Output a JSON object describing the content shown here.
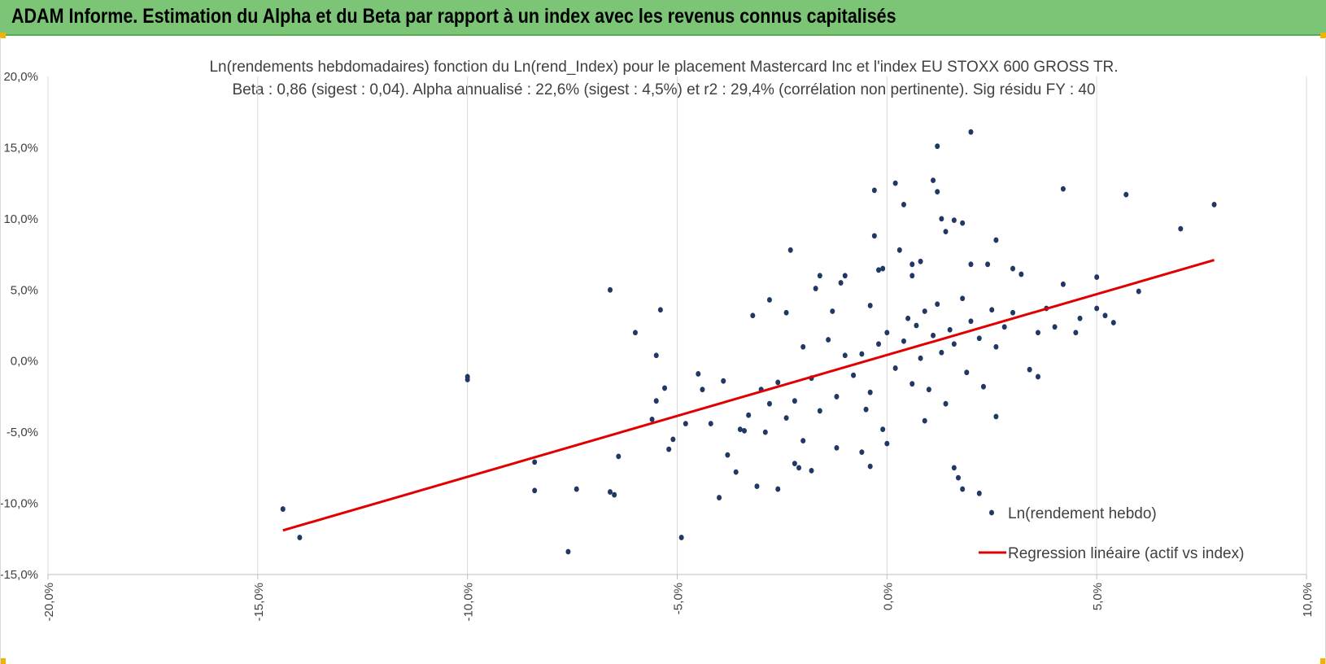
{
  "header": {
    "title": "ADAM Informe. Estimation du Alpha et du Beta par rapport à un index avec les revenus connus capitalisés",
    "background": "#7cc576"
  },
  "chart_data": {
    "type": "scatter",
    "title": "Ln(rendements hebdomadaires) fonction du Ln(rend_Index) pour le placement Mastercard Inc et l'index EU STOXX 600 GROSS TR.",
    "subtitle": "Beta : 0,86 (sigest : 0,04). Alpha annualisé : 22,6% (sigest : 4,5%) et r2 : 29,4% (corrélation non pertinente). Sig résidu FY : 40",
    "xlabel": "",
    "ylabel": "",
    "xlim": [
      -0.2,
      0.1
    ],
    "ylim": [
      -0.15,
      0.2
    ],
    "x_ticks": [
      "-20,0%",
      "-15,0%",
      "-10,0%",
      "-5,0%",
      "0,0%",
      "5,0%",
      "10,0%"
    ],
    "y_ticks": [
      "20,0%",
      "15,0%",
      "10,0%",
      "5,0%",
      "0,0%",
      "-5,0%",
      "-10,0%",
      "-15,0%"
    ],
    "grid": {
      "vertical": true,
      "horizontal": false
    },
    "legend_position": "bottom-right",
    "series": [
      {
        "name": "Ln(rendement hebdo)",
        "kind": "scatter",
        "color": "#1f3864",
        "points": [
          [
            -0.144,
            -0.104
          ],
          [
            -0.14,
            -0.124
          ],
          [
            -0.1,
            -0.013
          ],
          [
            -0.1,
            -0.011
          ],
          [
            -0.084,
            -0.071
          ],
          [
            -0.084,
            -0.091
          ],
          [
            -0.076,
            -0.134
          ],
          [
            -0.074,
            -0.09
          ],
          [
            -0.066,
            0.05
          ],
          [
            -0.066,
            -0.092
          ],
          [
            -0.065,
            -0.094
          ],
          [
            -0.064,
            -0.067
          ],
          [
            -0.06,
            0.02
          ],
          [
            -0.056,
            -0.041
          ],
          [
            -0.055,
            0.004
          ],
          [
            -0.055,
            -0.028
          ],
          [
            -0.054,
            0.036
          ],
          [
            -0.053,
            -0.019
          ],
          [
            -0.052,
            -0.062
          ],
          [
            -0.051,
            -0.055
          ],
          [
            -0.049,
            -0.124
          ],
          [
            -0.048,
            -0.044
          ],
          [
            -0.045,
            -0.009
          ],
          [
            -0.044,
            -0.02
          ],
          [
            -0.042,
            -0.044
          ],
          [
            -0.04,
            -0.096
          ],
          [
            -0.039,
            -0.014
          ],
          [
            -0.038,
            -0.066
          ],
          [
            -0.036,
            -0.078
          ],
          [
            -0.034,
            -0.049
          ],
          [
            -0.032,
            0.032
          ],
          [
            -0.031,
            -0.088
          ],
          [
            -0.029,
            -0.05
          ],
          [
            -0.028,
            0.043
          ],
          [
            -0.026,
            -0.09
          ],
          [
            -0.024,
            0.034
          ],
          [
            -0.023,
            0.078
          ],
          [
            -0.022,
            -0.072
          ],
          [
            -0.021,
            -0.075
          ],
          [
            -0.02,
            -0.056
          ],
          [
            -0.018,
            -0.077
          ],
          [
            -0.017,
            0.051
          ],
          [
            -0.016,
            0.06
          ],
          [
            -0.013,
            0.035
          ],
          [
            -0.012,
            -0.061
          ],
          [
            -0.011,
            0.055
          ],
          [
            -0.01,
            0.06
          ],
          [
            -0.006,
            -0.064
          ],
          [
            -0.005,
            -0.034
          ],
          [
            -0.004,
            -0.074
          ],
          [
            -0.004,
            0.039
          ],
          [
            -0.003,
            0.12
          ],
          [
            -0.003,
            0.088
          ],
          [
            -0.002,
            0.064
          ],
          [
            -0.001,
            0.065
          ],
          [
            -0.001,
            -0.048
          ],
          [
            0.0,
            -0.058
          ],
          [
            0.002,
            0.125
          ],
          [
            0.003,
            0.078
          ],
          [
            0.004,
            0.11
          ],
          [
            0.006,
            0.06
          ],
          [
            0.006,
            0.068
          ],
          [
            0.008,
            0.07
          ],
          [
            0.009,
            -0.042
          ],
          [
            0.011,
            0.127
          ],
          [
            0.012,
            0.151
          ],
          [
            0.012,
            0.119
          ],
          [
            0.013,
            0.1
          ],
          [
            0.014,
            0.091
          ],
          [
            0.016,
            -0.075
          ],
          [
            0.016,
            0.099
          ],
          [
            0.017,
            -0.082
          ],
          [
            0.018,
            -0.09
          ],
          [
            0.018,
            0.097
          ],
          [
            0.02,
            0.161
          ],
          [
            0.02,
            0.068
          ],
          [
            0.022,
            -0.093
          ],
          [
            0.024,
            0.068
          ],
          [
            0.026,
            0.085
          ],
          [
            0.026,
            -0.039
          ],
          [
            0.03,
            0.065
          ],
          [
            0.03,
            0.034
          ],
          [
            0.032,
            0.061
          ],
          [
            0.034,
            -0.006
          ],
          [
            0.036,
            -0.011
          ],
          [
            0.036,
            0.02
          ],
          [
            0.038,
            0.037
          ],
          [
            0.04,
            0.024
          ],
          [
            0.042,
            0.121
          ],
          [
            0.042,
            0.054
          ],
          [
            0.045,
            0.02
          ],
          [
            0.046,
            0.03
          ],
          [
            0.05,
            0.037
          ],
          [
            0.05,
            0.059
          ],
          [
            0.052,
            0.032
          ],
          [
            0.054,
            0.027
          ],
          [
            0.057,
            0.117
          ],
          [
            0.06,
            0.049
          ],
          [
            0.07,
            0.093
          ],
          [
            0.078,
            0.11
          ],
          [
            -0.008,
            -0.01
          ],
          [
            -0.006,
            0.005
          ],
          [
            -0.004,
            -0.022
          ],
          [
            -0.002,
            0.012
          ],
          [
            0.0,
            0.02
          ],
          [
            0.002,
            -0.005
          ],
          [
            0.004,
            0.014
          ],
          [
            0.005,
            0.03
          ],
          [
            0.006,
            -0.016
          ],
          [
            0.007,
            0.025
          ],
          [
            0.008,
            0.002
          ],
          [
            0.009,
            0.035
          ],
          [
            0.01,
            -0.02
          ],
          [
            0.011,
            0.018
          ],
          [
            0.012,
            0.04
          ],
          [
            0.013,
            0.006
          ],
          [
            0.014,
            -0.03
          ],
          [
            0.015,
            0.022
          ],
          [
            0.016,
            0.012
          ],
          [
            0.018,
            0.044
          ],
          [
            0.019,
            -0.008
          ],
          [
            0.02,
            0.028
          ],
          [
            0.022,
            0.016
          ],
          [
            0.023,
            -0.018
          ],
          [
            0.025,
            0.036
          ],
          [
            0.026,
            0.01
          ],
          [
            0.028,
            0.024
          ],
          [
            -0.01,
            0.004
          ],
          [
            -0.012,
            -0.025
          ],
          [
            -0.014,
            0.015
          ],
          [
            -0.016,
            -0.035
          ],
          [
            -0.018,
            -0.012
          ],
          [
            -0.02,
            0.01
          ],
          [
            -0.022,
            -0.028
          ],
          [
            -0.024,
            -0.04
          ],
          [
            -0.026,
            -0.015
          ],
          [
            -0.028,
            -0.03
          ],
          [
            -0.03,
            -0.02
          ],
          [
            -0.033,
            -0.038
          ],
          [
            -0.035,
            -0.048
          ]
        ]
      },
      {
        "name": "Regression linéaire (actif vs index)",
        "kind": "line",
        "color": "#e00000",
        "points": [
          [
            -0.144,
            -0.119
          ],
          [
            0.078,
            0.071
          ]
        ]
      }
    ]
  }
}
